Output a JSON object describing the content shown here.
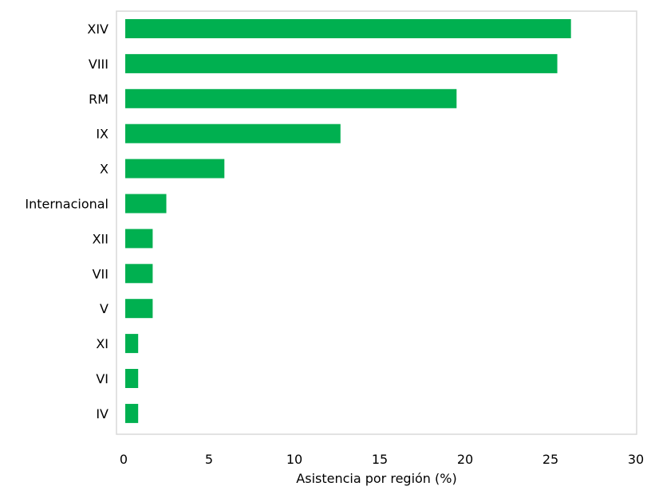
{
  "chart_data": {
    "type": "bar",
    "orientation": "horizontal",
    "categories": [
      "XIV",
      "VIII",
      "RM",
      "IX",
      "X",
      "Internacional",
      "XII",
      "VII",
      "V",
      "XI",
      "VI",
      "IV"
    ],
    "values": [
      26.2,
      25.4,
      19.5,
      12.7,
      5.9,
      2.5,
      1.7,
      1.7,
      1.7,
      0.85,
      0.85,
      0.85
    ],
    "title": "",
    "xlabel": "Asistencia por región (%)",
    "ylabel": "",
    "xlim": [
      0,
      30
    ],
    "xticks": [
      "0",
      "5",
      "10",
      "15",
      "20",
      "25",
      "30"
    ],
    "grid": false,
    "legend": "none",
    "bar_color": "#00b050",
    "frame_color": "#d9d9d9"
  }
}
